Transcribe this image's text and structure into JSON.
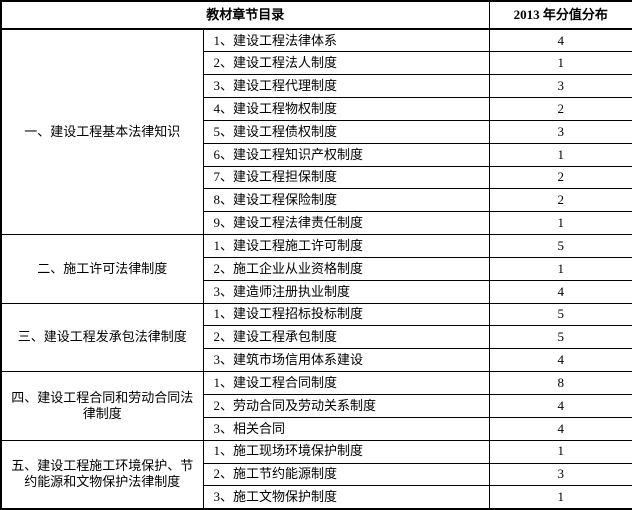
{
  "table": {
    "header": {
      "catalog": "教材章节目录",
      "score": "2013 年分值分布"
    },
    "groups": [
      {
        "label": "一、建设工程基本法律知识",
        "rows": [
          {
            "item": "1、建设工程法律体系",
            "score": "4"
          },
          {
            "item": "2、建设工程法人制度",
            "score": "1"
          },
          {
            "item": "3、建设工程代理制度",
            "score": "3"
          },
          {
            "item": "4、建设工程物权制度",
            "score": "2"
          },
          {
            "item": "5、建设工程债权制度",
            "score": "3"
          },
          {
            "item": "6、建设工程知识产权制度",
            "score": "1"
          },
          {
            "item": "7、建设工程担保制度",
            "score": "2"
          },
          {
            "item": "8、建设工程保险制度",
            "score": "2"
          },
          {
            "item": "9、建设工程法律责任制度",
            "score": "1"
          }
        ]
      },
      {
        "label": "二、施工许可法律制度",
        "rows": [
          {
            "item": "1、建设工程施工许可制度",
            "score": "5"
          },
          {
            "item": "2、施工企业从业资格制度",
            "score": "1"
          },
          {
            "item": "3、建造师注册执业制度",
            "score": "4"
          }
        ]
      },
      {
        "label": "三、建设工程发承包法律制度",
        "rows": [
          {
            "item": "1、建设工程招标投标制度",
            "score": "5"
          },
          {
            "item": "2、建设工程承包制度",
            "score": "5"
          },
          {
            "item": "3、建筑市场信用体系建设",
            "score": "4"
          }
        ]
      },
      {
        "label": "四、建设工程合同和劳动合同法律制度",
        "rows": [
          {
            "item": "1、建设工程合同制度",
            "score": "8"
          },
          {
            "item": "2、劳动合同及劳动关系制度",
            "score": "4"
          },
          {
            "item": "3、相关合同",
            "score": "4"
          }
        ]
      },
      {
        "label": "五、建设工程施工环境保护、节约能源和文物保护法律制度",
        "rows": [
          {
            "item": "1、施工现场环境保护制度",
            "score": "1"
          },
          {
            "item": "2、施工节约能源制度",
            "score": "3"
          },
          {
            "item": "3、施工文物保护制度",
            "score": "1"
          }
        ]
      }
    ]
  }
}
